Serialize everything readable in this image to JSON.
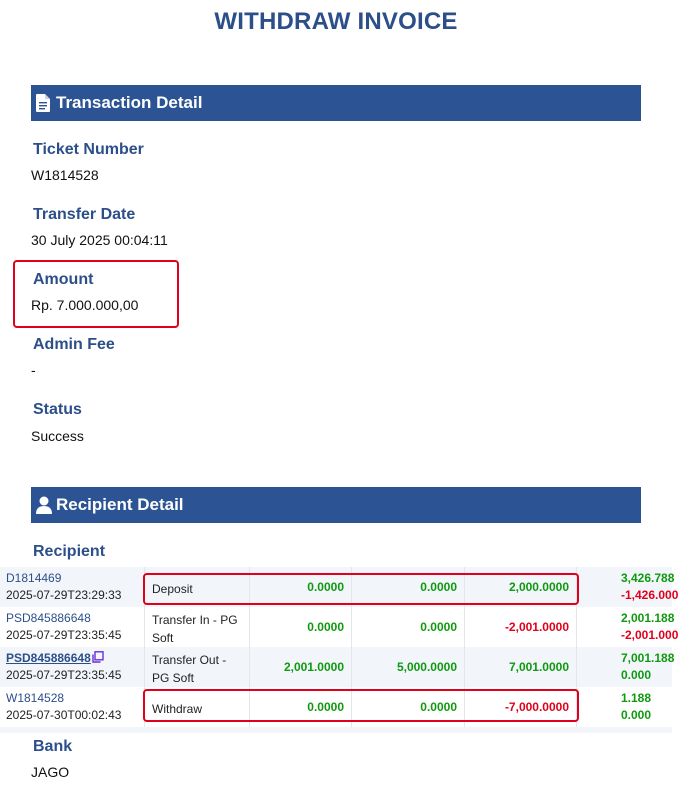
{
  "page": {
    "title": "WITHDRAW INVOICE"
  },
  "transaction_detail": {
    "header": "Transaction Detail",
    "icon": "document-icon",
    "fields": {
      "ticket_label": "Ticket Number",
      "ticket_value": "W1814528",
      "date_label": "Transfer Date",
      "date_value": "30 July 2025 00:04:11",
      "amount_label": "Amount",
      "amount_value": "Rp. 7.000.000,00",
      "fee_label": "Admin Fee",
      "fee_value": "-",
      "status_label": "Status",
      "status_value": "Success"
    }
  },
  "recipient_detail": {
    "header": "Recipient Detail",
    "icon": "user-icon",
    "recipient_label": "Recipient",
    "bank_label": "Bank",
    "bank_value": "JAGO"
  },
  "transactions": [
    {
      "ref": "D1814469",
      "time": "2025-07-29T23:29:33",
      "type": "Deposit",
      "n1": "0.0000",
      "n2": "0.0000",
      "n3": "2,000.0000",
      "bal1": "3,426.788",
      "bal2": "-1,426.000"
    },
    {
      "ref": "PSD845886648",
      "time": "2025-07-29T23:35:45",
      "type": "Transfer In - PG Soft",
      "n1": "0.0000",
      "n2": "0.0000",
      "n3": "-2,001.0000",
      "bal1": "2,001.188",
      "bal2": "-2,001.000"
    },
    {
      "ref": "PSD845886648",
      "time": "2025-07-29T23:35:45",
      "type": "Transfer Out - PG Soft",
      "n1": "2,001.0000",
      "n2": "5,000.0000",
      "n3": "7,001.0000",
      "bal1": "7,001.188",
      "bal2": "0.000"
    },
    {
      "ref": "W1814528",
      "time": "2025-07-30T00:02:43",
      "type": "Withdraw",
      "n1": "0.0000",
      "n2": "0.0000",
      "n3": "-7,000.0000",
      "bal1": "1.188",
      "bal2": "0.000"
    }
  ],
  "colors": {
    "accent": "#2c5494",
    "positive": "#0e9a0e",
    "negative": "#e0001b",
    "highlight": "#e0001b"
  }
}
